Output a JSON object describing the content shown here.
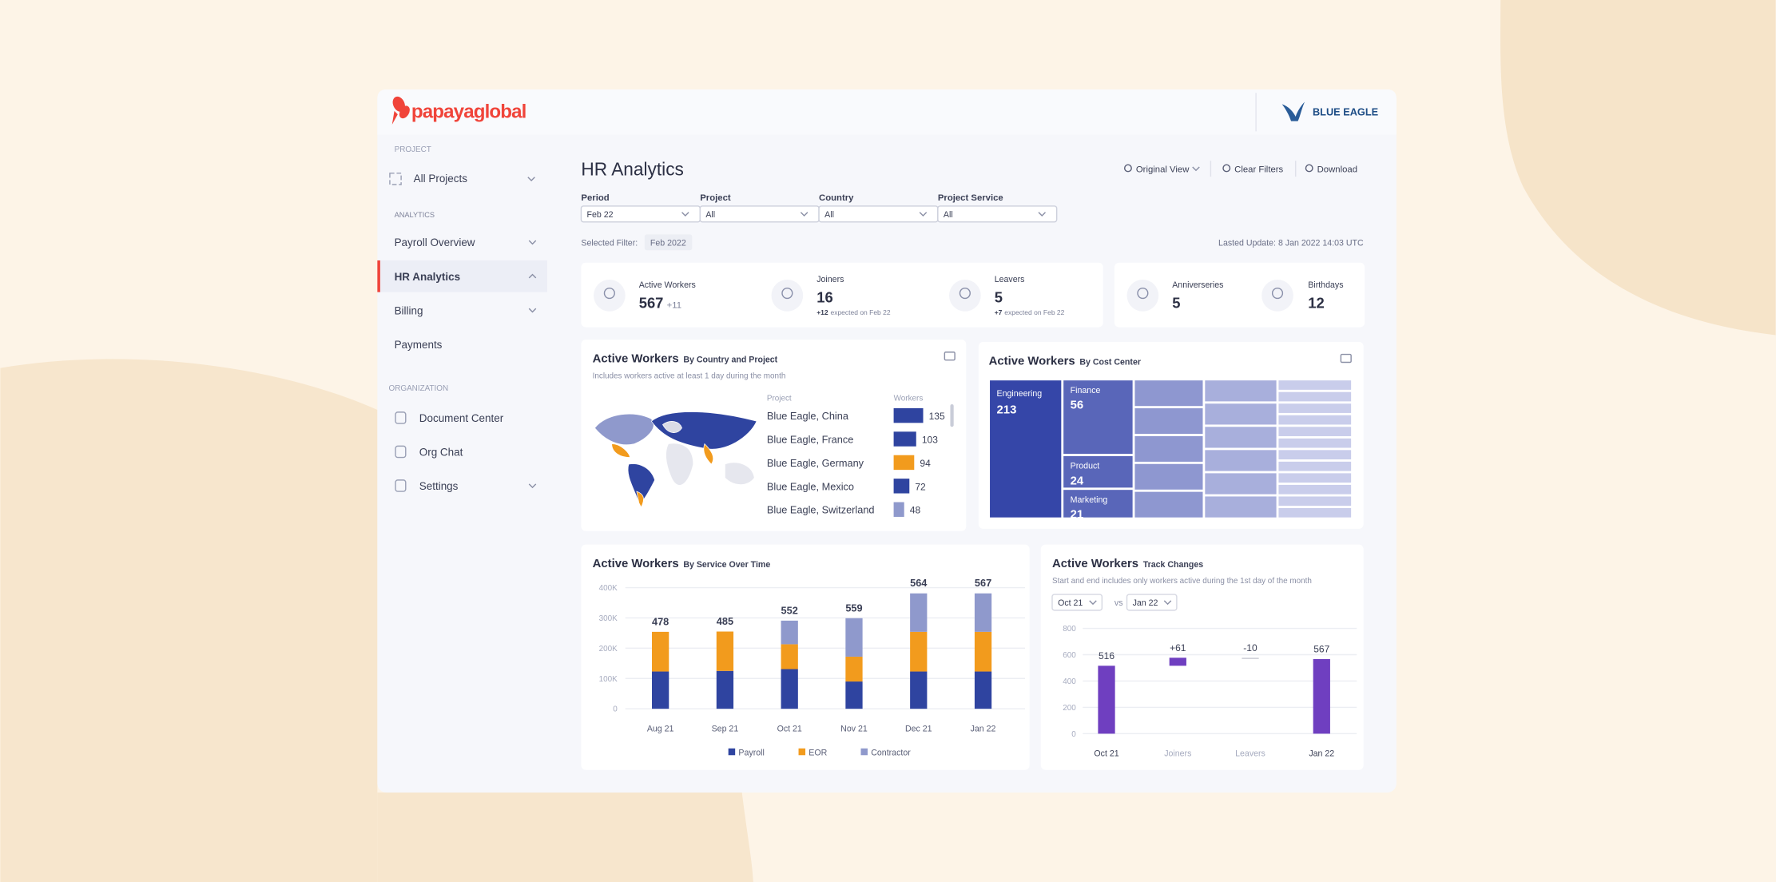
{
  "brand": {
    "logo": "papayaglobal",
    "client": "BLUE EAGLE"
  },
  "sidebar": {
    "project_heading": "PROJECT",
    "project": "All Projects",
    "analytics_heading": "ANALYTICS",
    "analytics_items": [
      "Payroll Overview",
      "HR Analytics",
      "Billing",
      "Payments"
    ],
    "organization_heading": "ORGANIZATION",
    "organization_items": [
      "Document Center",
      "Org Chat",
      "Settings"
    ]
  },
  "header": {
    "title": "HR Analytics",
    "actions": [
      "Original View",
      "Clear Filters",
      "Download"
    ]
  },
  "filters": [
    {
      "label": "Period",
      "value": "Feb 22"
    },
    {
      "label": "Project",
      "value": "All"
    },
    {
      "label": "Country",
      "value": "All"
    },
    {
      "label": "Project Service",
      "value": "All"
    }
  ],
  "selected_filter": {
    "label": "Selected Filter:",
    "value": "Feb 2022"
  },
  "last_update": "Lasted Update: 8 Jan 2022 14:03 UTC",
  "kpis": [
    {
      "label": "Active Workers",
      "value": 567,
      "delta": "+11"
    },
    {
      "label": "Joiners",
      "value": 16,
      "delta": "+12",
      "note": "expected on Feb 22"
    },
    {
      "label": "Leavers",
      "value": 5,
      "delta": "+7",
      "note": "expected on Feb 22"
    },
    {
      "label": "Anniverseries",
      "value": 5
    },
    {
      "label": "Birthdays",
      "value": 12
    }
  ],
  "country_chart": {
    "title": "Active Workers",
    "subtitle": "By Country and Project",
    "note": "Includes workers active at least 1 day during the month",
    "col_project": "Project",
    "col_workers": "Workers",
    "categories": [
      "Blue Eagle, China",
      "Blue Eagle, France",
      "Blue Eagle, Germany",
      "Blue Eagle, Mexico",
      "Blue Eagle, Switzerland"
    ],
    "values": [
      135,
      103,
      94,
      72,
      48
    ],
    "colors": [
      "#2f44a0",
      "#2f44a0",
      "#f29b1d",
      "#2f44a0",
      "#8f99cc"
    ]
  },
  "cost_center": {
    "title": "Active Workers",
    "subtitle": "By Cost Center",
    "categories": [
      "Engineering",
      "Finance",
      "Product",
      "Marketing"
    ],
    "values": [
      213,
      56,
      24,
      21
    ],
    "colors": [
      "#3546a8",
      "#5966b9",
      "#5966b9",
      "#5966b9"
    ]
  },
  "service_chart": {
    "type": "bar",
    "title": "Active Workers",
    "subtitle": "By Service Over Time",
    "categories": [
      "Aug 21",
      "Sep 21",
      "Oct 21",
      "Nov 21",
      "Dec 21",
      "Jan 22"
    ],
    "series": [
      {
        "name": "Payroll",
        "color": "#2f44a0",
        "values": [
          123000,
          125000,
          131000,
          90000,
          123000,
          123000
        ]
      },
      {
        "name": "EOR",
        "color": "#f29b1d",
        "values": [
          131000,
          130000,
          82000,
          82000,
          131000,
          131000
        ]
      },
      {
        "name": "Contractor",
        "color": "#8f99cc",
        "values": [
          0,
          0,
          78000,
          127000,
          127000,
          127000
        ]
      }
    ],
    "totals": [
      478,
      485,
      552,
      559,
      564,
      567
    ],
    "ylim": [
      0,
      400000
    ],
    "yticks": [
      0,
      {
        "value": 100000,
        "label": "100K"
      },
      {
        "value": 200000,
        "label": "200K"
      },
      {
        "value": 300000,
        "label": "300K"
      },
      {
        "value": 400000,
        "label": "400K"
      }
    ],
    "grid": true
  },
  "waterfall": {
    "type": "waterfall",
    "title": "Active Workers",
    "subtitle": "Track Changes",
    "note": "Start and end includes only workers active during the 1st day of the month",
    "from": "Oct 21",
    "vs": "vs",
    "to": "Jan 22",
    "categories": [
      "Oct 21",
      "Joiners",
      "Leavers",
      "Jan 22"
    ],
    "values": [
      516,
      61,
      -10,
      567
    ],
    "value_labels": [
      "516",
      "+61",
      "-10",
      "567"
    ],
    "colors": [
      "#6f3fc0",
      "#6f3fc0",
      "#cfd0d8",
      "#6f3fc0"
    ],
    "ylim": [
      0,
      800
    ],
    "yticks": [
      0,
      200,
      400,
      600,
      800
    ],
    "grid": true
  }
}
